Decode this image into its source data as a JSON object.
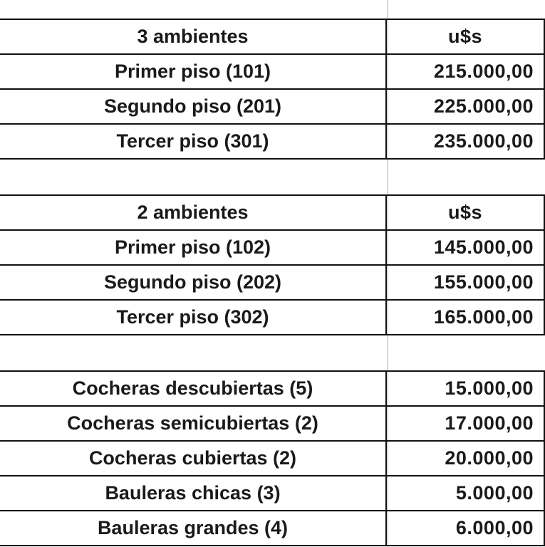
{
  "sections": [
    {
      "header": {
        "label": "3 ambientes",
        "value": "u$s"
      },
      "rows": [
        {
          "label": "Primer piso (101)",
          "value": "215.000,00"
        },
        {
          "label": "Segundo piso (201)",
          "value": "225.000,00"
        },
        {
          "label": "Tercer piso (301)",
          "value": "235.000,00"
        }
      ]
    },
    {
      "header": {
        "label": "2 ambientes",
        "value": "u$s"
      },
      "rows": [
        {
          "label": "Primer piso (102)",
          "value": "145.000,00"
        },
        {
          "label": "Segundo piso (202)",
          "value": "155.000,00"
        },
        {
          "label": "Tercer piso (302)",
          "value": "165.000,00"
        }
      ]
    },
    {
      "rows": [
        {
          "label": "Cocheras descubiertas (5)",
          "value": "15.000,00"
        },
        {
          "label": "Cocheras semicubiertas (2)",
          "value": "17.000,00"
        },
        {
          "label": "Cocheras cubiertas (2)",
          "value": "20.000,00"
        },
        {
          "label": "Bauleras chicas (3)",
          "value": "5.000,00"
        },
        {
          "label": "Bauleras grandes (4)",
          "value": "6.000,00"
        }
      ]
    }
  ]
}
